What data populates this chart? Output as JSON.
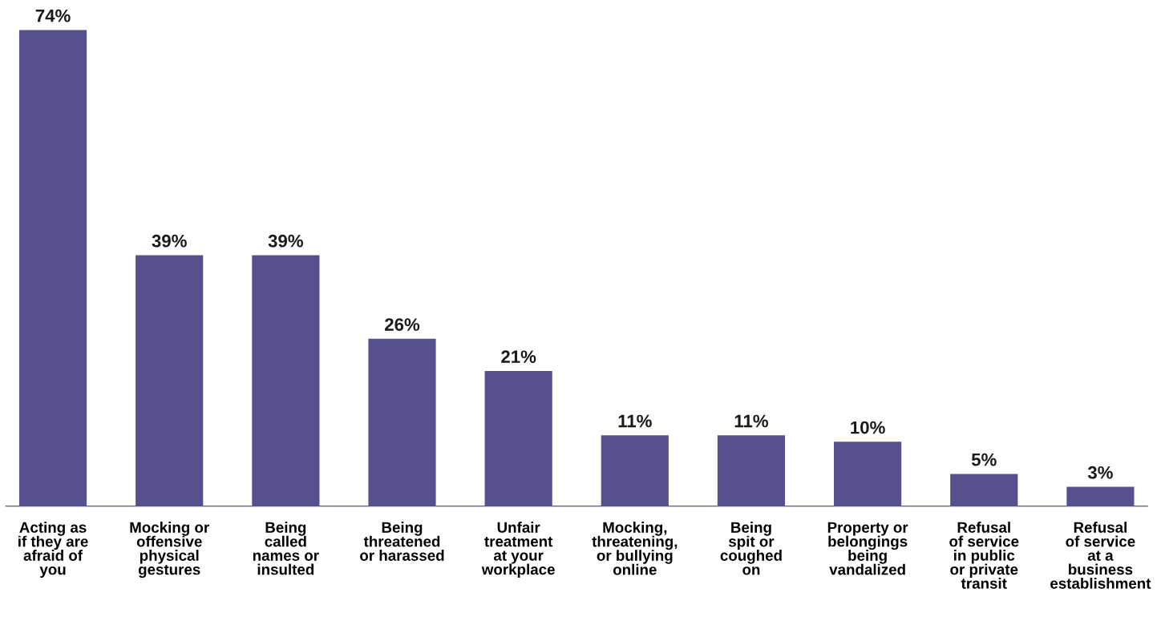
{
  "chart_data": {
    "type": "bar",
    "categories": [
      "Acting as\nif they are\nafraid of\nyou",
      "Mocking or\noffensive\nphysical\ngestures",
      "Being\ncalled\nnames or\ninsulted",
      "Being\nthreatened\nor harassed",
      "Unfair\ntreatment\nat your\nworkplace",
      "Mocking,\nthreatening,\nor bullying\nonline",
      "Being\nspit or\ncoughed\non",
      "Property or\nbelongings\nbeing\nvandalized",
      "Refusal\nof service\nin public\nor private\ntransit",
      "Refusal\nof service\nat a\nbusiness\nestablishment"
    ],
    "values": [
      74,
      39,
      39,
      26,
      21,
      11,
      11,
      10,
      5,
      3
    ],
    "value_labels": [
      "74%",
      "39%",
      "39%",
      "26%",
      "21%",
      "11%",
      "11%",
      "10%",
      "5%",
      "3%"
    ],
    "color": "#56508f",
    "grid": false,
    "legend": false
  }
}
